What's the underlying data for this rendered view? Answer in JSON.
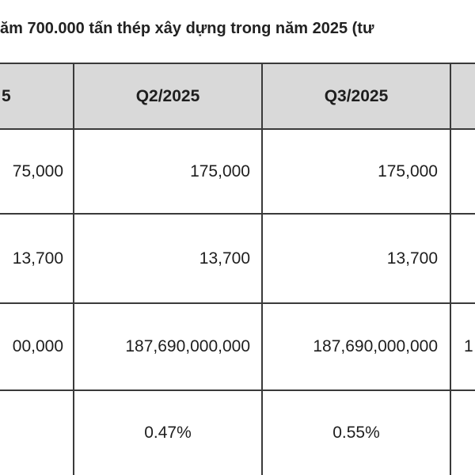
{
  "title": "ăm 700.000 tấn thép xây dựng trong năm 2025 (tư",
  "table": {
    "headers": [
      "5",
      "Q2/2025",
      "Q3/2025",
      ""
    ],
    "rows": [
      {
        "c0": "75,000",
        "c1": "175,000",
        "c2": "175,000",
        "c3": ""
      },
      {
        "c0": "13,700",
        "c1": "13,700",
        "c2": "13,700",
        "c3": ""
      },
      {
        "c0": "00,000",
        "c1": "187,690,000,000",
        "c2": "187,690,000,000",
        "c3": "1"
      },
      {
        "c0": "",
        "c1": "0.47%",
        "c2": "0.55%",
        "c3": ""
      }
    ]
  },
  "colors": {
    "header_bg": "#d9d9d9",
    "border": "#3a3a3a",
    "text": "#1e1e1e"
  }
}
